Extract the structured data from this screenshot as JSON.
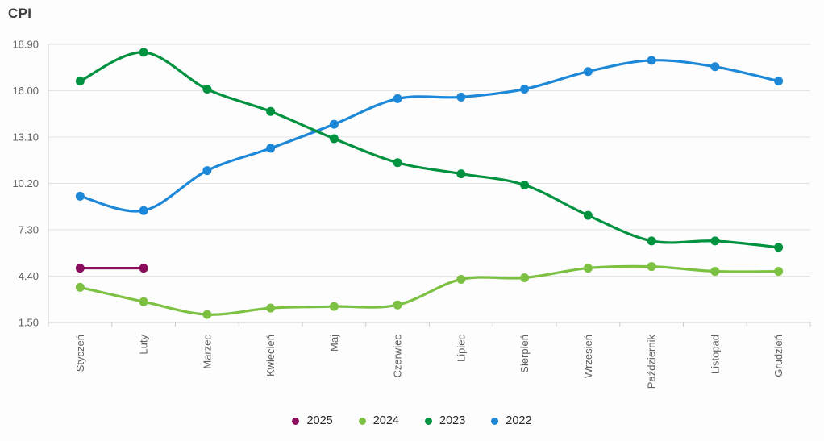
{
  "chart_data": {
    "type": "line",
    "title": "CPI",
    "x_categories": [
      "Styczeń",
      "Luty",
      "Marzec",
      "Kwiecień",
      "Maj",
      "Czerwiec",
      "Lipiec",
      "Sierpień",
      "Wrzesień",
      "Październik",
      "Listopad",
      "Grudzień"
    ],
    "y_ticks": [
      "18.90",
      "16.00",
      "13.10",
      "10.20",
      "7.30",
      "4.40",
      "1.50"
    ],
    "ylim": [
      1.5,
      18.9
    ],
    "grid": "horizontal",
    "legend_position": "bottom",
    "x_label_rotation": -90,
    "series": [
      {
        "name": "2025",
        "color": "#8b0e5e",
        "values": [
          4.9,
          4.9,
          null,
          null,
          null,
          null,
          null,
          null,
          null,
          null,
          null,
          null
        ]
      },
      {
        "name": "2024",
        "color": "#7cc142",
        "values": [
          3.7,
          2.8,
          2.0,
          2.4,
          2.5,
          2.6,
          4.2,
          4.3,
          4.9,
          5.0,
          4.7,
          4.7
        ]
      },
      {
        "name": "2023",
        "color": "#00923f",
        "values": [
          16.6,
          18.4,
          16.1,
          14.7,
          13.0,
          11.5,
          10.8,
          10.1,
          8.2,
          6.6,
          6.6,
          6.2
        ]
      },
      {
        "name": "2022",
        "color": "#1d87d8",
        "values": [
          9.4,
          8.5,
          11.0,
          12.4,
          13.9,
          15.5,
          15.6,
          16.1,
          17.2,
          17.9,
          17.5,
          16.6
        ]
      }
    ]
  }
}
